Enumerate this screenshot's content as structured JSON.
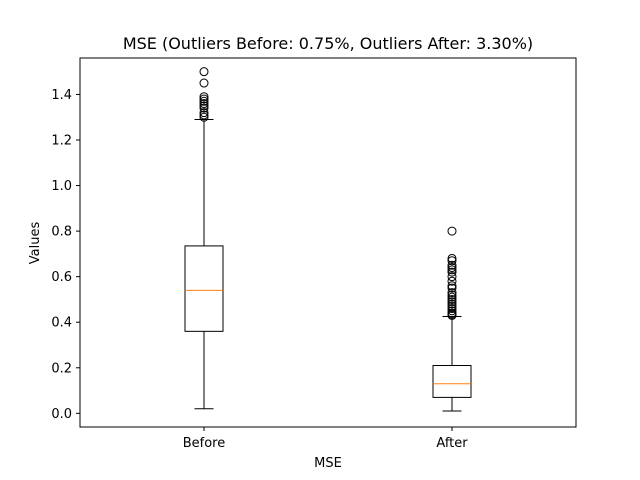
{
  "chart_data": {
    "type": "boxplot",
    "title": "MSE (Outliers Before: 0.75%, Outliers After: 3.30%)",
    "xlabel": "MSE",
    "ylabel": "Values",
    "categories": [
      "Before",
      "After"
    ],
    "ylim": [
      -0.06,
      1.56
    ],
    "yticks": [
      0.0,
      0.2,
      0.4,
      0.6,
      0.8,
      1.0,
      1.2,
      1.4
    ],
    "ytick_labels": [
      "0.0",
      "0.2",
      "0.4",
      "0.6",
      "0.8",
      "1.0",
      "1.2",
      "1.4"
    ],
    "grid": false,
    "boxes": [
      {
        "category": "Before",
        "whisker_low": 0.02,
        "q1": 0.36,
        "median": 0.54,
        "q3": 0.735,
        "whisker_high": 1.29,
        "outliers": [
          1.3,
          1.31,
          1.32,
          1.34,
          1.35,
          1.36,
          1.37,
          1.38,
          1.39,
          1.45,
          1.5
        ]
      },
      {
        "category": "After",
        "whisker_low": 0.01,
        "q1": 0.07,
        "median": 0.13,
        "q3": 0.21,
        "whisker_high": 0.425,
        "outliers": [
          0.43,
          0.435,
          0.44,
          0.45,
          0.46,
          0.47,
          0.48,
          0.49,
          0.5,
          0.51,
          0.52,
          0.53,
          0.55,
          0.56,
          0.58,
          0.6,
          0.62,
          0.63,
          0.64,
          0.65,
          0.67,
          0.68,
          0.8
        ]
      }
    ],
    "colors": {
      "box": "#000000",
      "median": "#ff7f0e",
      "flier": "#000000"
    }
  }
}
